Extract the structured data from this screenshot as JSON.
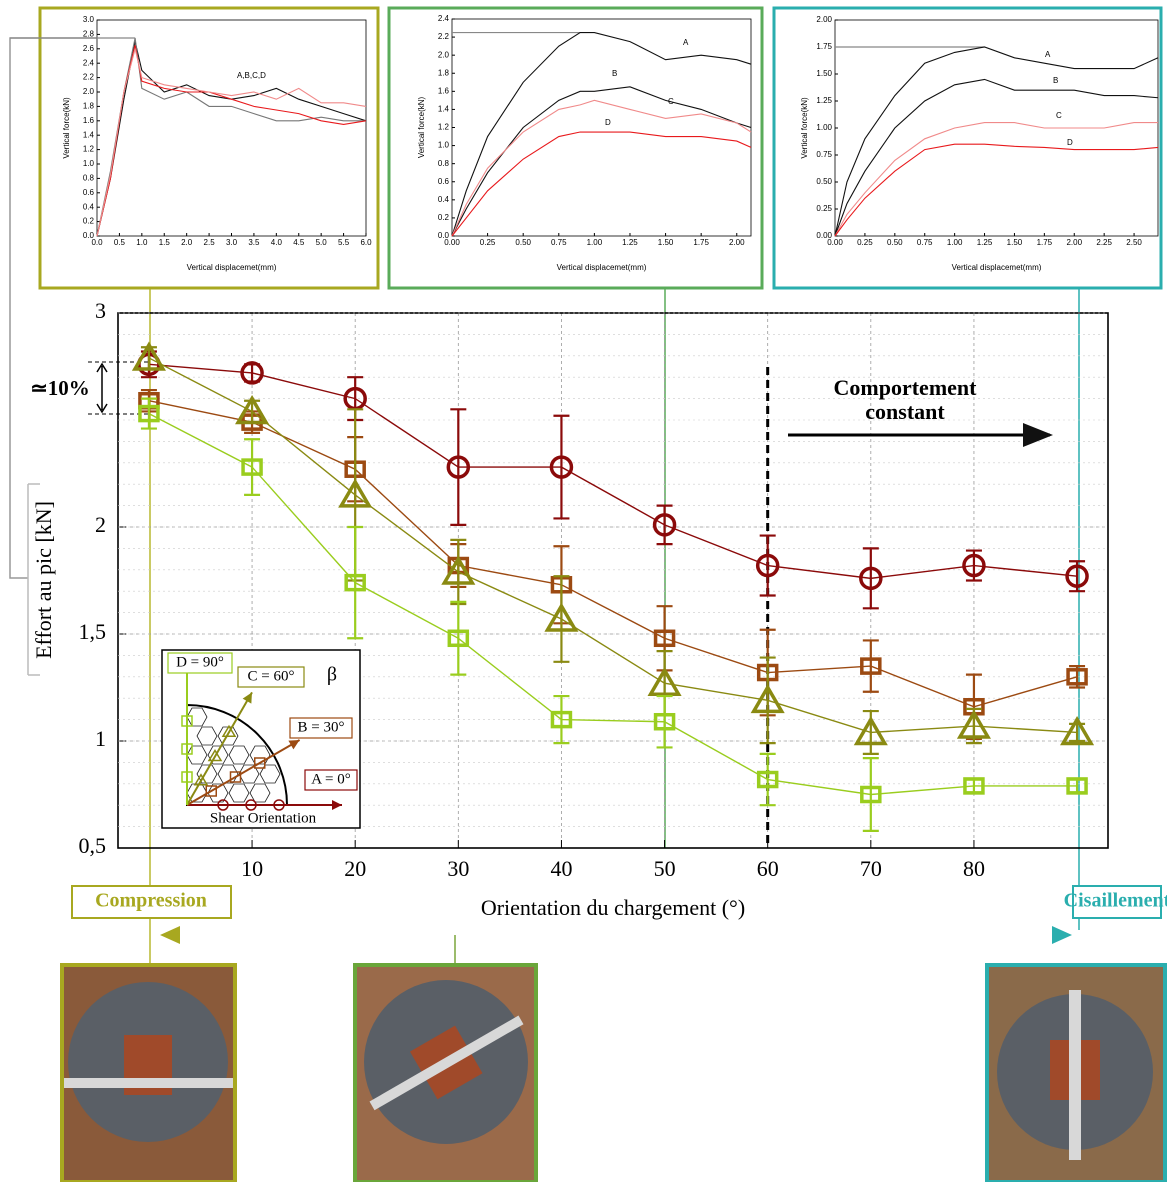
{
  "chart_data": [
    {
      "type": "line",
      "x_label": "Orientation du chargement (°)",
      "y_label": "Effort au pic [kN]",
      "x": [
        0,
        10,
        20,
        30,
        40,
        50,
        60,
        70,
        80,
        90
      ],
      "xlim": [
        -3,
        93
      ],
      "xticks": [
        10,
        20,
        30,
        40,
        50,
        60,
        70,
        80
      ],
      "ylim": [
        0.5,
        3
      ],
      "yticks": [
        {
          "value": 0.5,
          "label": "0,5"
        },
        1,
        {
          "value": 1.5,
          "label": "1,5"
        },
        2,
        3
      ],
      "grid": true,
      "series": [
        {
          "name": "A = 0°",
          "color": "#8b0a0a",
          "marker": "circle",
          "values": [
            2.76,
            2.72,
            2.6,
            2.28,
            2.28,
            2.01,
            1.82,
            1.76,
            1.82,
            1.77
          ],
          "errors": [
            0.06,
            0.04,
            0.1,
            0.27,
            0.24,
            0.09,
            0.14,
            0.14,
            0.07,
            0.07
          ]
        },
        {
          "name": "B = 30°",
          "color": "#9c4a12",
          "marker": "square",
          "values": [
            2.59,
            2.49,
            2.27,
            1.82,
            1.73,
            1.48,
            1.32,
            1.35,
            1.16,
            1.3
          ],
          "errors": [
            0.05,
            0.05,
            0.15,
            0.1,
            0.18,
            0.15,
            0.2,
            0.12,
            0.15,
            0.05
          ]
        },
        {
          "name": "C = 60°",
          "color": "#8a8a12",
          "marker": "triangle",
          "values": [
            2.79,
            2.54,
            2.15,
            1.79,
            1.57,
            1.27,
            1.19,
            1.04,
            1.07,
            1.04
          ],
          "errors": [
            0.05,
            0.05,
            0.4,
            0.15,
            0.2,
            0.15,
            0.2,
            0.1,
            0.08,
            0.04
          ]
        },
        {
          "name": "D = 90°",
          "color": "#9acd1e",
          "marker": "square",
          "values": [
            2.53,
            2.28,
            1.74,
            1.48,
            1.1,
            1.09,
            0.82,
            0.75,
            0.79,
            0.79
          ],
          "errors": [
            0.07,
            0.13,
            0.26,
            0.17,
            0.11,
            0.12,
            0.12,
            0.17,
            0.03,
            0.03
          ]
        }
      ],
      "annotations": {
        "ten_percent": "≃10%",
        "constant_1": "Comportement",
        "constant_2": "constant",
        "compression": "Compression",
        "shear": "Cisaillement",
        "legend_symbol": "β",
        "legend_caption": "Shear Orientation"
      }
    },
    {
      "type": "line",
      "x_label": "Vertical displacemet(mm)",
      "y_label": "Vertical force(kN)",
      "annotation": "A,B,C,D",
      "x": [
        0,
        0.3,
        0.6,
        0.85,
        1.0,
        1.5,
        2,
        2.5,
        3,
        3.5,
        4,
        4.5,
        5,
        5.5,
        6
      ],
      "xlim": [
        0,
        6
      ],
      "xticks": [
        {
          "value": 0,
          "label": "0.0"
        },
        0.5,
        {
          "value": 1,
          "label": "1.0"
        },
        1.5,
        {
          "value": 2,
          "label": "2.0"
        },
        2.5,
        {
          "value": 3,
          "label": "3.0"
        },
        3.5,
        {
          "value": 4,
          "label": "4.0"
        },
        4.5,
        {
          "value": 5,
          "label": "5.0"
        },
        5.5,
        {
          "value": 6,
          "label": "6.0"
        }
      ],
      "ylim": [
        0,
        3
      ],
      "yticks": [
        {
          "value": 0,
          "label": "0.0"
        },
        0.2,
        0.4,
        0.6,
        0.8,
        {
          "value": 1,
          "label": "1.0"
        },
        1.2,
        1.4,
        1.6,
        1.8,
        {
          "value": 2,
          "label": "2.0"
        },
        2.2,
        2.4,
        2.6,
        2.8,
        {
          "value": 3,
          "label": "3.0"
        }
      ],
      "series": [
        {
          "color": "#111111",
          "values": [
            0,
            0.8,
            1.9,
            2.7,
            2.3,
            2.0,
            2.1,
            1.95,
            1.9,
            1.95,
            2.05,
            1.9,
            1.8,
            1.7,
            1.6
          ]
        },
        {
          "color": "#777777",
          "values": [
            0,
            0.9,
            2.0,
            2.75,
            2.05,
            1.9,
            2.0,
            1.8,
            1.8,
            1.7,
            1.6,
            1.6,
            1.65,
            1.6,
            1.6
          ]
        },
        {
          "color": "#e8191c",
          "values": [
            0,
            0.8,
            2.0,
            2.65,
            2.15,
            2.05,
            2.0,
            2.0,
            1.9,
            1.8,
            1.75,
            1.7,
            1.6,
            1.55,
            1.6
          ]
        },
        {
          "color": "#f08a8a",
          "values": [
            0,
            0.85,
            2.0,
            2.6,
            2.2,
            2.1,
            2.05,
            2.0,
            1.95,
            2.0,
            1.9,
            2.05,
            1.85,
            1.85,
            1.8
          ]
        }
      ]
    },
    {
      "type": "line",
      "x_label": "Vertical displacemet(mm)",
      "y_label": "Vertical force(kN)",
      "x": [
        0,
        0.1,
        0.25,
        0.5,
        0.75,
        0.9,
        1.0,
        1.25,
        1.5,
        1.75,
        2.0,
        2.1
      ],
      "xlim": [
        0,
        2.1
      ],
      "xticks": [
        {
          "value": 0,
          "label": "0.00"
        },
        0.25,
        {
          "value": 0.5,
          "label": "0.50"
        },
        0.75,
        {
          "value": 1,
          "label": "1.00"
        },
        1.25,
        {
          "value": 1.5,
          "label": "1.50"
        },
        1.75,
        {
          "value": 2,
          "label": "2.00"
        }
      ],
      "ylim": [
        0,
        2.4
      ],
      "yticks": [
        {
          "value": 0,
          "label": "0.0"
        },
        0.2,
        0.4,
        0.6,
        0.8,
        {
          "value": 1,
          "label": "1.0"
        },
        1.2,
        1.4,
        1.6,
        1.8,
        {
          "value": 2,
          "label": "2.0"
        },
        2.2,
        2.4
      ],
      "series": [
        {
          "name": "A",
          "color": "#111111",
          "values": [
            0,
            0.5,
            1.1,
            1.7,
            2.1,
            2.25,
            2.25,
            2.15,
            1.95,
            2.0,
            1.95,
            1.9
          ]
        },
        {
          "name": "B",
          "color": "#111111",
          "values": [
            0,
            0.3,
            0.7,
            1.2,
            1.5,
            1.6,
            1.6,
            1.65,
            1.5,
            1.4,
            1.25,
            1.2
          ]
        },
        {
          "name": "C",
          "color": "#f08a8a",
          "values": [
            0,
            0.35,
            0.75,
            1.15,
            1.4,
            1.45,
            1.5,
            1.4,
            1.3,
            1.35,
            1.25,
            1.15
          ]
        },
        {
          "name": "D",
          "color": "#e8191c",
          "values": [
            0,
            0.2,
            0.5,
            0.85,
            1.1,
            1.15,
            1.15,
            1.15,
            1.1,
            1.1,
            1.05,
            0.98
          ]
        }
      ]
    },
    {
      "type": "line",
      "x_label": "Vertical displacemet(mm)",
      "y_label": "Vertical force(kN)",
      "x": [
        0,
        0.1,
        0.25,
        0.5,
        0.75,
        1.0,
        1.25,
        1.5,
        1.75,
        2.0,
        2.25,
        2.5,
        2.7
      ],
      "xlim": [
        0,
        2.7
      ],
      "xticks": [
        {
          "value": 0,
          "label": "0.00"
        },
        0.25,
        {
          "value": 0.5,
          "label": "0.50"
        },
        0.75,
        {
          "value": 1,
          "label": "1.00"
        },
        1.25,
        {
          "value": 1.5,
          "label": "1.50"
        },
        1.75,
        {
          "value": 2,
          "label": "2.00"
        },
        2.25,
        {
          "value": 2.5,
          "label": "2.50"
        }
      ],
      "ylim": [
        0,
        2
      ],
      "yticks": [
        {
          "value": 0,
          "label": "0.00"
        },
        0.25,
        {
          "value": 0.5,
          "label": "0.50"
        },
        0.75,
        {
          "value": 1,
          "label": "1.00"
        },
        1.25,
        {
          "value": 1.5,
          "label": "1.50"
        },
        1.75,
        {
          "value": 2,
          "label": "2.00"
        }
      ],
      "series": [
        {
          "name": "A",
          "color": "#111111",
          "values": [
            0,
            0.5,
            0.9,
            1.3,
            1.6,
            1.7,
            1.75,
            1.65,
            1.6,
            1.55,
            1.55,
            1.55,
            1.65
          ]
        },
        {
          "name": "B",
          "color": "#111111",
          "values": [
            0,
            0.3,
            0.6,
            1.0,
            1.25,
            1.4,
            1.45,
            1.35,
            1.35,
            1.35,
            1.3,
            1.3,
            1.28
          ]
        },
        {
          "name": "C",
          "color": "#f08a8a",
          "values": [
            0,
            0.2,
            0.4,
            0.7,
            0.9,
            1.0,
            1.05,
            1.05,
            1.0,
            1.0,
            1.0,
            1.05,
            1.05
          ]
        },
        {
          "name": "D",
          "color": "#e8191c",
          "values": [
            0,
            0.15,
            0.35,
            0.6,
            0.8,
            0.85,
            0.85,
            0.83,
            0.82,
            0.8,
            0.8,
            0.8,
            0.82
          ]
        }
      ]
    }
  ]
}
